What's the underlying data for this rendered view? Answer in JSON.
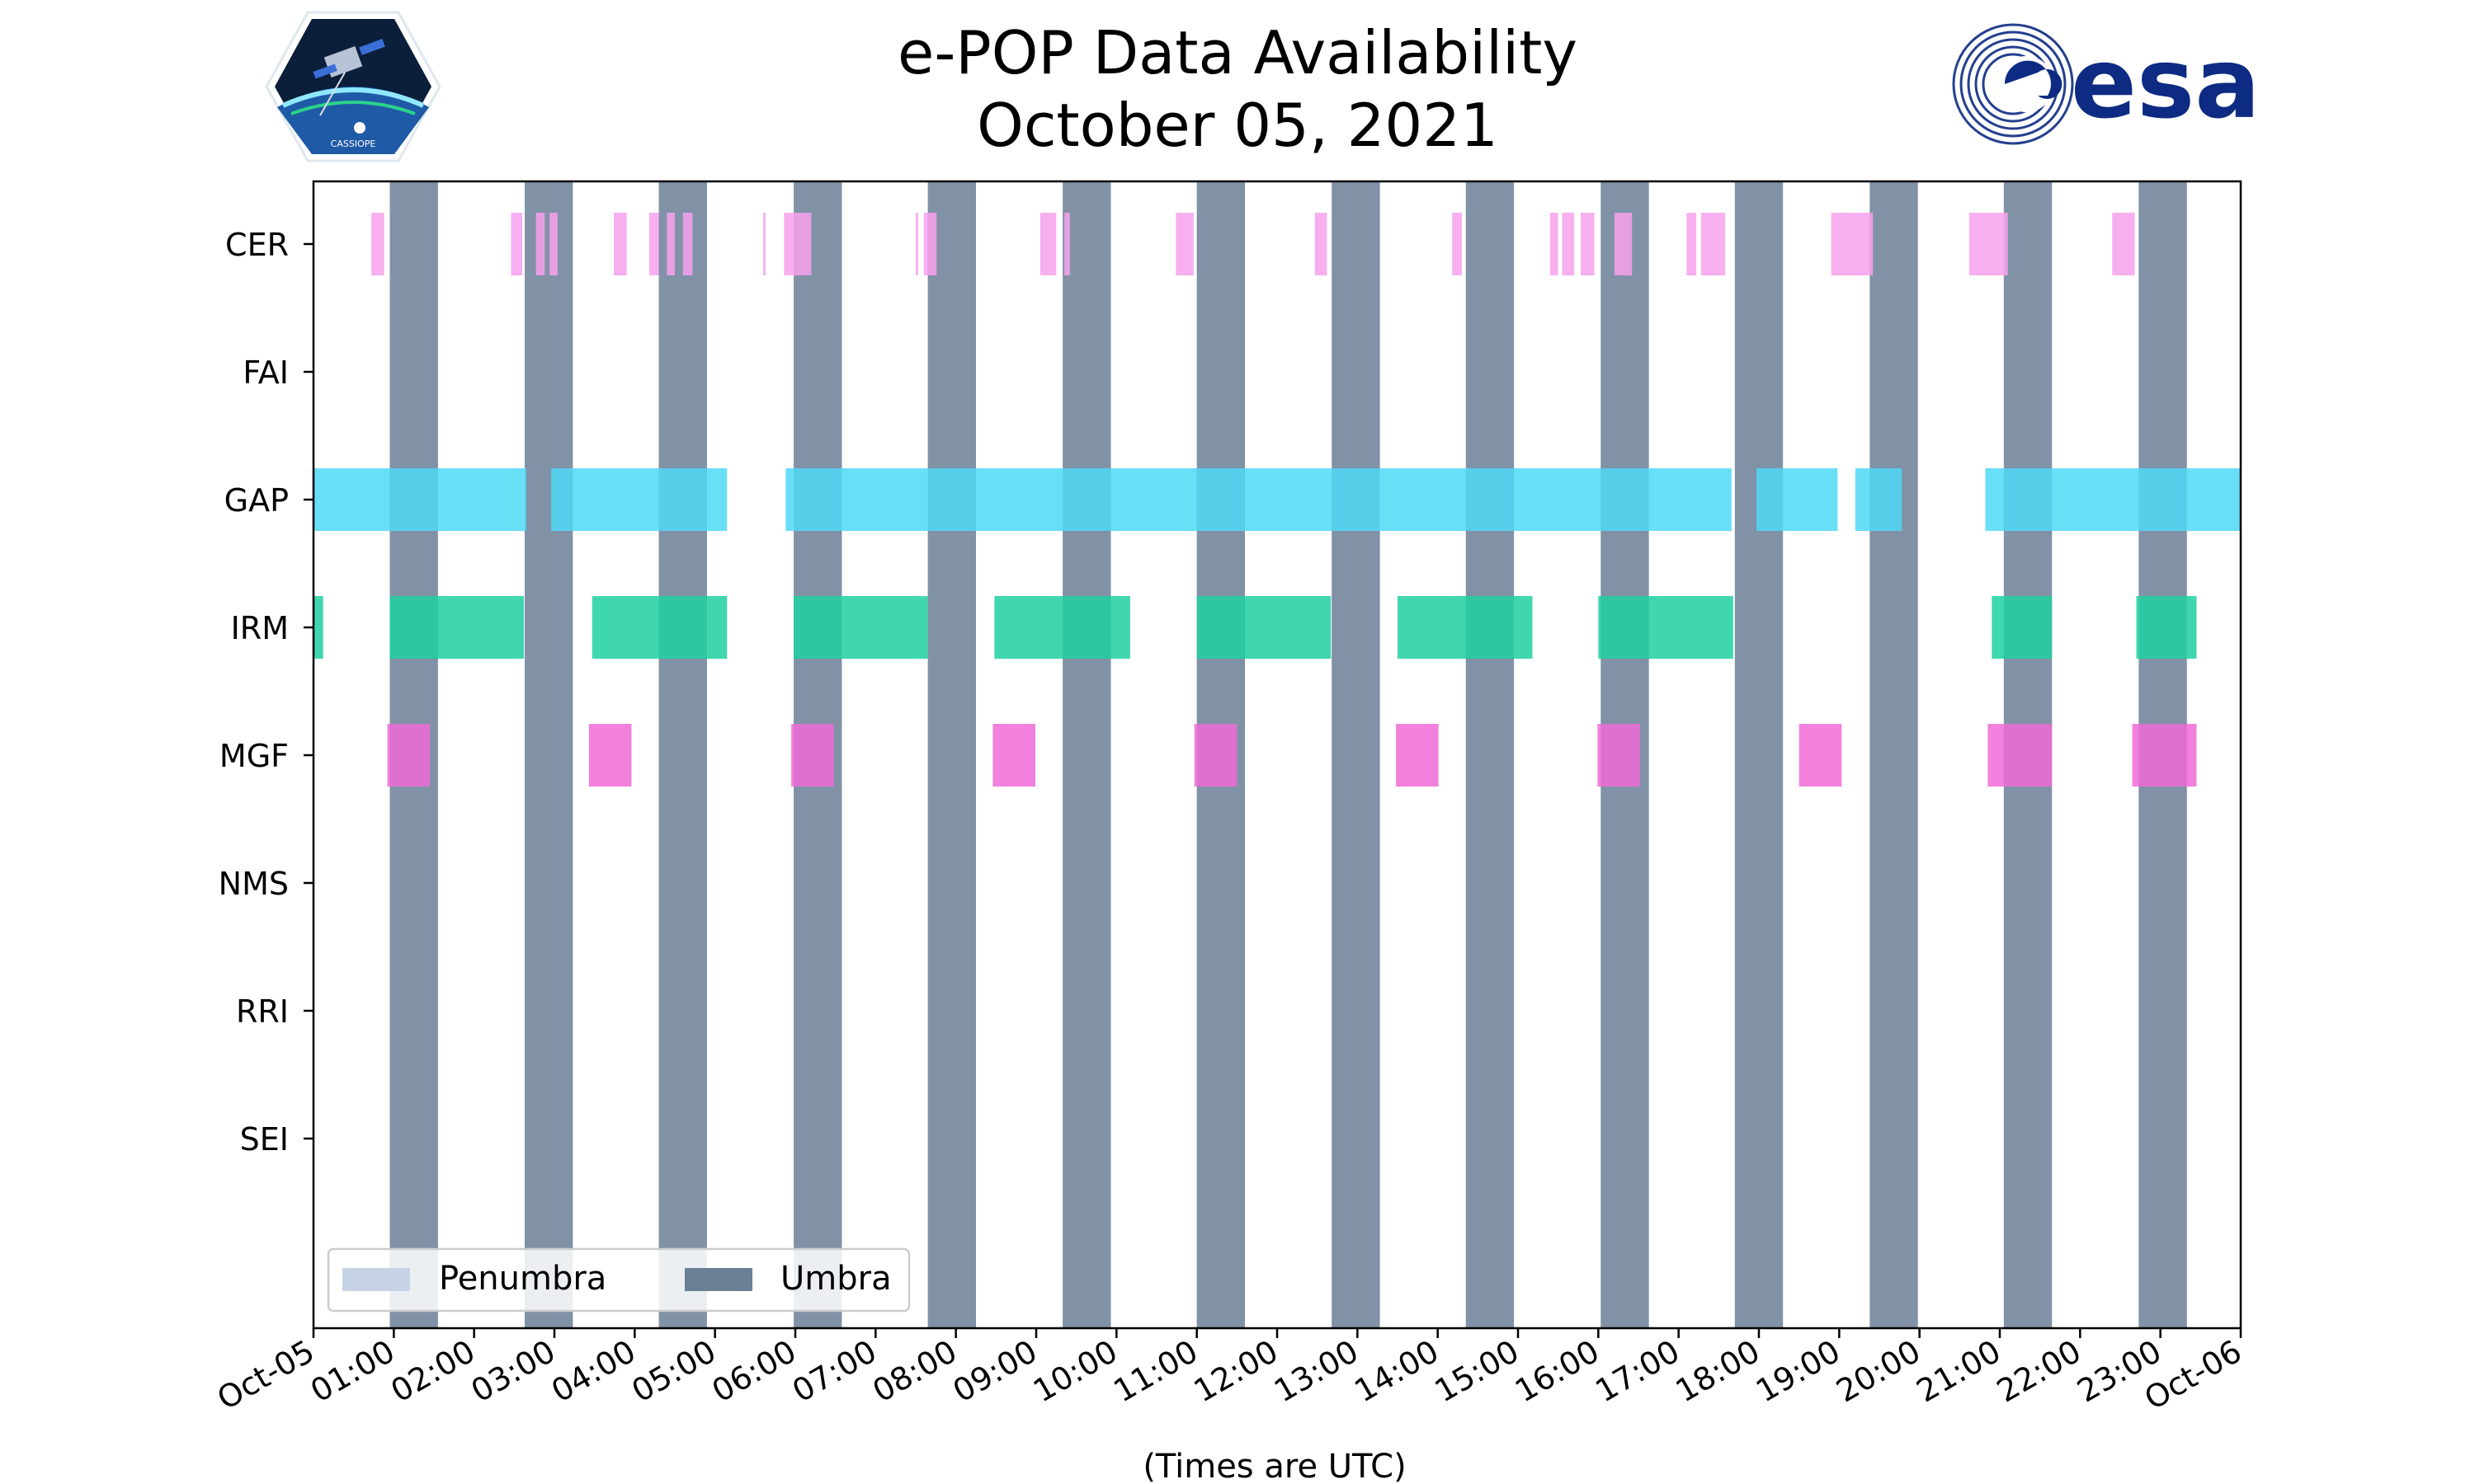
{
  "header": {
    "title_line1": "e-POP Data Availability",
    "title_line2": "October 05, 2021"
  },
  "logos": {
    "left_text": "CASSIOPE",
    "right_text": "esa"
  },
  "colors": {
    "umbra": "#6b7f96",
    "penumbra": "#c5d3e5",
    "CER": "#f7a1ec",
    "GAP": "#4fd8f6",
    "IRM": "#20d0a0",
    "MGF": "#ef6bd6",
    "esa_blue": "#0d2b82"
  },
  "chart_data": {
    "type": "timeline",
    "xlabel": "(Times are UTC)",
    "x_range_hours": [
      0,
      24
    ],
    "x_ticks": [
      "Oct-05",
      "01:00",
      "02:00",
      "03:00",
      "04:00",
      "05:00",
      "06:00",
      "07:00",
      "08:00",
      "09:00",
      "10:00",
      "11:00",
      "12:00",
      "13:00",
      "14:00",
      "15:00",
      "16:00",
      "17:00",
      "18:00",
      "19:00",
      "20:00",
      "21:00",
      "22:00",
      "23:00",
      "Oct-06"
    ],
    "instruments": [
      "CER",
      "FAI",
      "GAP",
      "IRM",
      "MGF",
      "NMS",
      "RRI",
      "SEI"
    ],
    "legend": {
      "position": "lower-left",
      "entries": [
        "Penumbra",
        "Umbra"
      ]
    },
    "umbra": [
      [
        0.95,
        1.55
      ],
      [
        2.63,
        3.23
      ],
      [
        4.3,
        4.9
      ],
      [
        5.98,
        6.58
      ],
      [
        7.65,
        8.25
      ],
      [
        9.33,
        9.93
      ],
      [
        11.0,
        11.6
      ],
      [
        12.68,
        13.28
      ],
      [
        14.35,
        14.95
      ],
      [
        16.03,
        16.63
      ],
      [
        17.7,
        18.3
      ],
      [
        19.38,
        19.98
      ],
      [
        21.05,
        21.65
      ],
      [
        22.73,
        23.33
      ]
    ],
    "availability": {
      "CER": [
        [
          0.72,
          0.88
        ],
        [
          2.46,
          2.6
        ],
        [
          2.77,
          2.88
        ],
        [
          2.94,
          3.04
        ],
        [
          3.74,
          3.9
        ],
        [
          4.18,
          4.3
        ],
        [
          4.4,
          4.5
        ],
        [
          4.6,
          4.72
        ],
        [
          5.6,
          5.63
        ],
        [
          5.86,
          6.2
        ],
        [
          7.5,
          7.53
        ],
        [
          7.6,
          7.76
        ],
        [
          9.05,
          9.25
        ],
        [
          9.35,
          9.42
        ],
        [
          10.74,
          10.96
        ],
        [
          12.47,
          12.62
        ],
        [
          14.18,
          14.3
        ],
        [
          15.4,
          15.5
        ],
        [
          15.55,
          15.7
        ],
        [
          15.78,
          15.95
        ],
        [
          16.2,
          16.42
        ],
        [
          17.1,
          17.22
        ],
        [
          17.28,
          17.58
        ],
        [
          18.9,
          19.42
        ],
        [
          20.62,
          21.1
        ],
        [
          22.4,
          22.68
        ]
      ],
      "FAI": [],
      "GAP": [
        [
          0.0,
          2.65
        ],
        [
          2.96,
          5.15
        ],
        [
          5.88,
          17.66
        ],
        [
          17.97,
          18.98
        ],
        [
          19.2,
          19.78
        ],
        [
          20.82,
          24.0
        ]
      ],
      "IRM": [
        [
          0.0,
          0.12
        ],
        [
          0.95,
          2.62
        ],
        [
          3.47,
          5.15
        ],
        [
          5.98,
          7.65
        ],
        [
          8.48,
          10.17
        ],
        [
          11.0,
          12.67
        ],
        [
          13.5,
          15.18
        ],
        [
          16.0,
          17.68
        ],
        [
          20.9,
          21.65
        ],
        [
          22.7,
          23.45
        ]
      ],
      "MGF": [
        [
          0.92,
          1.45
        ],
        [
          3.43,
          3.96
        ],
        [
          5.95,
          6.48
        ],
        [
          8.46,
          8.99
        ],
        [
          10.97,
          11.5
        ],
        [
          13.48,
          14.01
        ],
        [
          15.99,
          16.52
        ],
        [
          18.5,
          19.03
        ],
        [
          20.85,
          21.65
        ],
        [
          22.65,
          23.45
        ]
      ],
      "NMS": [],
      "RRI": [],
      "SEI": []
    }
  }
}
